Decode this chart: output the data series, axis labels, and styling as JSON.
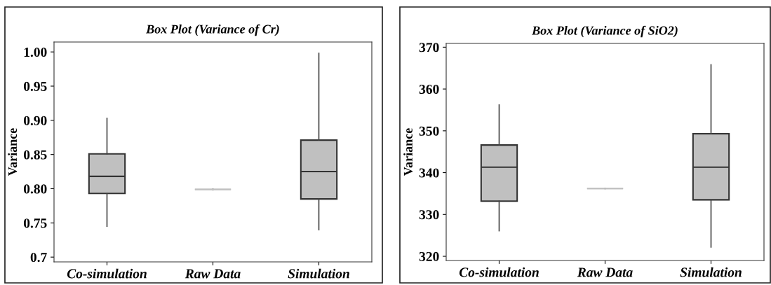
{
  "chart_data": [
    {
      "type": "box",
      "title": "Box Plot (Variance of Cr)",
      "ylabel": "Variance",
      "categories": [
        "Co-simulation",
        "Raw Data",
        "Simulation"
      ],
      "color": "#c0c0c0",
      "ylim": [
        0.693,
        1.0145
      ],
      "yticks": [
        {
          "value": 0.7,
          "label": "0.7"
        },
        0.75,
        {
          "value": 0.8,
          "label": "0.80"
        },
        0.85,
        {
          "value": 0.9,
          "label": "0.90"
        },
        0.95,
        {
          "value": 1.0,
          "label": "1.00"
        }
      ],
      "boxes": [
        {
          "low": 0.745,
          "q1": 0.793,
          "median": 0.818,
          "q3": 0.851,
          "high": 0.903
        },
        {
          "low": 0.799,
          "q1": 0.799,
          "median": 0.799,
          "q3": 0.799,
          "high": 0.799
        },
        {
          "low": 0.74,
          "q1": 0.785,
          "median": 0.825,
          "q3": 0.871,
          "high": 0.998
        }
      ]
    },
    {
      "type": "box",
      "title": "Box Plot (Variance of SiO2)",
      "ylabel": "Variance",
      "categories": [
        "Co-simulation",
        "Raw Data",
        "Simulation"
      ],
      "color": "#c0c0c0",
      "ylim": [
        319.0,
        370.9
      ],
      "yticks": [
        320,
        330,
        340,
        350,
        360,
        370
      ],
      "boxes": [
        {
          "low": 326.1,
          "q1": 333.2,
          "median": 341.3,
          "q3": 346.6,
          "high": 356.2
        },
        {
          "low": 336.2,
          "q1": 336.2,
          "median": 336.2,
          "q3": 336.2,
          "high": 336.2
        },
        {
          "low": 322.2,
          "q1": 333.5,
          "median": 341.3,
          "q3": 349.3,
          "high": 365.8
        }
      ]
    }
  ]
}
